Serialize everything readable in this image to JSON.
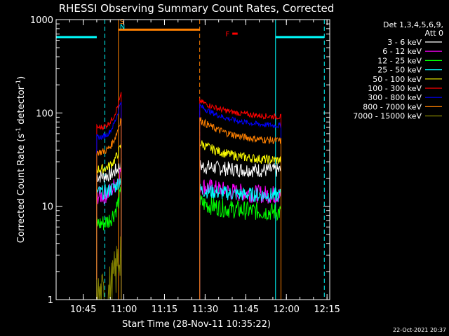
{
  "chart_data": {
    "type": "line",
    "title": "RHESSI Observing Summary Count Rates, Corrected",
    "xlabel": "Start Time (28-Nov-11 10:35:22)",
    "ylabel": "Corrected Count Rate (s⁻¹ detector⁻¹)",
    "ylabel_main": "Corrected Count Rate (s",
    "ylabel_sup1": "-1",
    "ylabel_mid": " detector",
    "ylabel_sup2": "-1",
    "ylabel_end": ")",
    "y_scale": "log",
    "xlim": [
      "10:35",
      "12:16"
    ],
    "ylim": [
      1,
      1000
    ],
    "x_ticks": [
      "10:45",
      "11:00",
      "11:15",
      "11:30",
      "11:45",
      "12:00",
      "12:15"
    ],
    "y_ticks": [
      "1",
      "10",
      "100",
      "1000"
    ],
    "timestamp": "22-Oct-2021 20:37",
    "legend": {
      "placement": "right",
      "header1": "Det 1,3,4,5,6,9,",
      "header2": "Att 0",
      "entries": [
        {
          "label": "3 - 6 keV",
          "color": "#ffffff"
        },
        {
          "label": "6 - 12 keV",
          "color": "#ff00ff"
        },
        {
          "label": "12 - 25 keV",
          "color": "#00ff00"
        },
        {
          "label": "25 - 50 keV",
          "color": "#00ffff"
        },
        {
          "label": "50 - 100 keV",
          "color": "#ffff00"
        },
        {
          "label": "100 - 300 keV",
          "color": "#ff0000"
        },
        {
          "label": "300 - 800 keV",
          "color": "#0000ff"
        },
        {
          "label": "800 - 7000 keV",
          "color": "#ff8000"
        },
        {
          "label": "7000 - 15000 keV",
          "color": "#808000"
        }
      ]
    },
    "flags": [
      {
        "label": "S",
        "color": "#ff8000",
        "time": "10:58"
      },
      {
        "label": "N",
        "color": "#00ffff",
        "time": "10:58"
      },
      {
        "label": "F",
        "color": "#ff0000",
        "time": "11:39",
        "end": "11:42"
      }
    ],
    "bars": [
      {
        "color": "#00ffff",
        "start": "10:35",
        "end": "10:50",
        "level": 650
      },
      {
        "color": "#ff8000",
        "start": "10:58",
        "end": "11:28",
        "level": 780
      },
      {
        "color": "#00ffff",
        "start": "11:56",
        "end": "12:14",
        "level": 650
      }
    ],
    "vlines": [
      {
        "time": "10:35",
        "color": "#00ffff",
        "dashed": false
      },
      {
        "time": "10:53",
        "color": "#00ffff",
        "dashed": true
      },
      {
        "time": "10:58",
        "color": "#ff8000",
        "dashed": false
      },
      {
        "time": "11:28",
        "color": "#ff8000",
        "dashed": true
      },
      {
        "time": "11:56",
        "color": "#00ffff",
        "dashed": false
      },
      {
        "time": "12:14",
        "color": "#00ffff",
        "dashed": true
      }
    ],
    "segments": [
      {
        "start": "10:50",
        "end": "10:59",
        "end_rise": true
      },
      {
        "start": "11:28",
        "end": "11:58",
        "end_rise": false
      }
    ],
    "series": [
      {
        "name": "3 - 6 keV",
        "color": "#ffffff",
        "seg1": [
          21,
          28
        ],
        "seg2": [
          27,
          24
        ],
        "noise": 0.08
      },
      {
        "name": "6 - 12 keV",
        "color": "#ff00ff",
        "seg1": [
          13,
          25
        ],
        "seg2": [
          17,
          13
        ],
        "noise": 0.1
      },
      {
        "name": "12 - 25 keV",
        "color": "#00ff00",
        "seg1": [
          6.5,
          14
        ],
        "seg2": [
          11,
          8.5
        ],
        "noise": 0.1
      },
      {
        "name": "25 - 50 keV",
        "color": "#00ffff",
        "seg1": [
          14,
          20
        ],
        "seg2": [
          15,
          13
        ],
        "noise": 0.08
      },
      {
        "name": "50 - 100 keV",
        "color": "#ffff00",
        "seg1": [
          25,
          45
        ],
        "seg2": [
          48,
          30
        ],
        "noise": 0.05
      },
      {
        "name": "100 - 300 keV",
        "color": "#ff0000",
        "seg1": [
          70,
          160
        ],
        "seg2": [
          135,
          88
        ],
        "noise": 0.03
      },
      {
        "name": "300 - 800 keV",
        "color": "#0000ff",
        "seg1": [
          55,
          140
        ],
        "seg2": [
          120,
          70
        ],
        "noise": 0.03
      },
      {
        "name": "800 - 7000 keV",
        "color": "#ff8000",
        "seg1": [
          38,
          90
        ],
        "seg2": [
          85,
          48
        ],
        "noise": 0.04
      },
      {
        "name": "7000 - 15000 keV",
        "color": "#808000",
        "seg1": [
          1,
          4
        ],
        "seg2": null,
        "noise": 0.3
      }
    ]
  }
}
